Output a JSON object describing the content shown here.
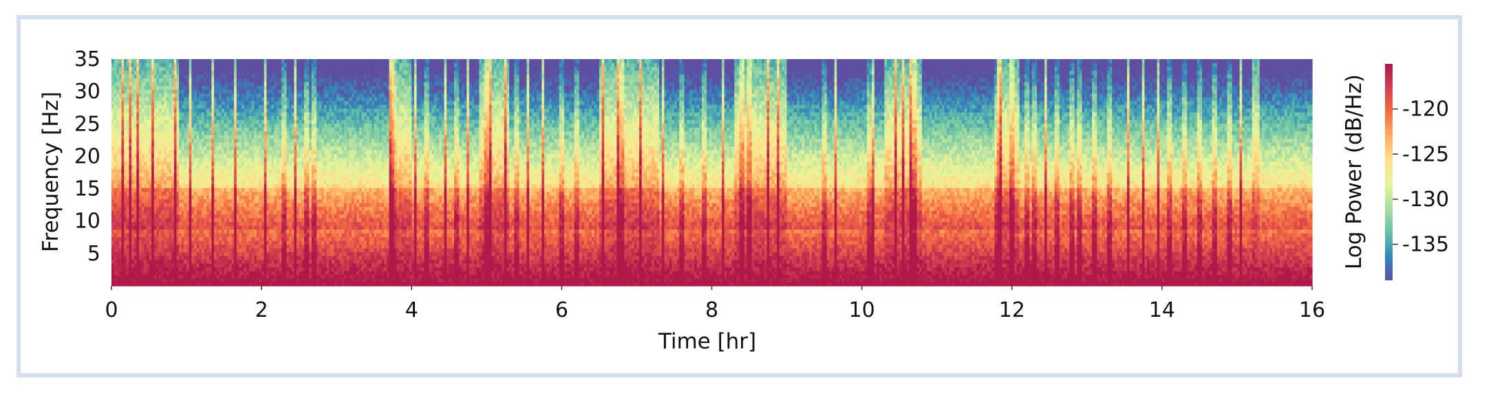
{
  "chart_data": {
    "type": "heatmap",
    "title": "",
    "xlabel": "Time [hr]",
    "ylabel": "Frequency [Hz]",
    "xlim": [
      0,
      16
    ],
    "ylim": [
      0,
      35
    ],
    "xticks": [
      {
        "value": 0,
        "label": "0"
      },
      {
        "value": 2,
        "label": "2"
      },
      {
        "value": 4,
        "label": "4"
      },
      {
        "value": 6,
        "label": "6"
      },
      {
        "value": 8,
        "label": "8"
      },
      {
        "value": 10,
        "label": "10"
      },
      {
        "value": 12,
        "label": "12"
      },
      {
        "value": 14,
        "label": "14"
      },
      {
        "value": 16,
        "label": "16"
      }
    ],
    "yticks": [
      {
        "value": 5,
        "label": "5"
      },
      {
        "value": 10,
        "label": "10"
      },
      {
        "value": 15,
        "label": "15"
      },
      {
        "value": 20,
        "label": "20"
      },
      {
        "value": 25,
        "label": "25"
      },
      {
        "value": 30,
        "label": "30"
      },
      {
        "value": 35,
        "label": "35"
      }
    ],
    "colorbar": {
      "label": "Log Power (dB/Hz)",
      "range": [
        -139,
        -115
      ],
      "ticks": [
        {
          "value": -120,
          "label": "-120"
        },
        {
          "value": -125,
          "label": "-125"
        },
        {
          "value": -130,
          "label": "-130"
        },
        {
          "value": -135,
          "label": "-135"
        }
      ],
      "colormap": [
        "#5e4fa2",
        "#3288bd",
        "#66c2a5",
        "#abdda4",
        "#e6f598",
        "#fee08b",
        "#fdae61",
        "#f46d43",
        "#d53e4f",
        "#b0184a"
      ]
    },
    "slow_wave_sleep_segments_hr": [
      [
        0.9,
        3.7
      ],
      [
        4.0,
        4.9
      ],
      [
        5.3,
        6.5
      ],
      [
        7.3,
        8.3
      ],
      [
        9.0,
        10.3
      ],
      [
        10.8,
        11.8
      ],
      [
        12.1,
        15.2
      ],
      [
        15.3,
        16.0
      ]
    ],
    "wake_transients_hr": [
      0.15,
      0.25,
      0.35,
      0.55,
      0.85,
      1.05,
      1.35,
      1.65,
      2.05,
      2.3,
      2.45,
      2.6,
      2.7,
      3.72,
      3.76,
      4.05,
      4.2,
      4.45,
      4.6,
      4.75,
      5.0,
      5.05,
      5.25,
      5.4,
      5.55,
      5.75,
      6.0,
      6.2,
      6.55,
      6.75,
      6.8,
      7.05,
      7.35,
      7.6,
      7.9,
      8.15,
      8.4,
      8.5,
      8.75,
      8.88,
      9.5,
      9.65,
      10.1,
      10.15,
      10.45,
      10.55,
      10.65,
      10.7,
      11.8,
      11.85,
      12.0,
      12.2,
      12.3,
      12.45,
      12.6,
      12.8,
      12.9,
      13.1,
      13.3,
      13.55,
      13.75,
      13.95,
      14.1,
      14.3,
      14.5,
      14.7,
      14.9,
      15.05
    ]
  }
}
